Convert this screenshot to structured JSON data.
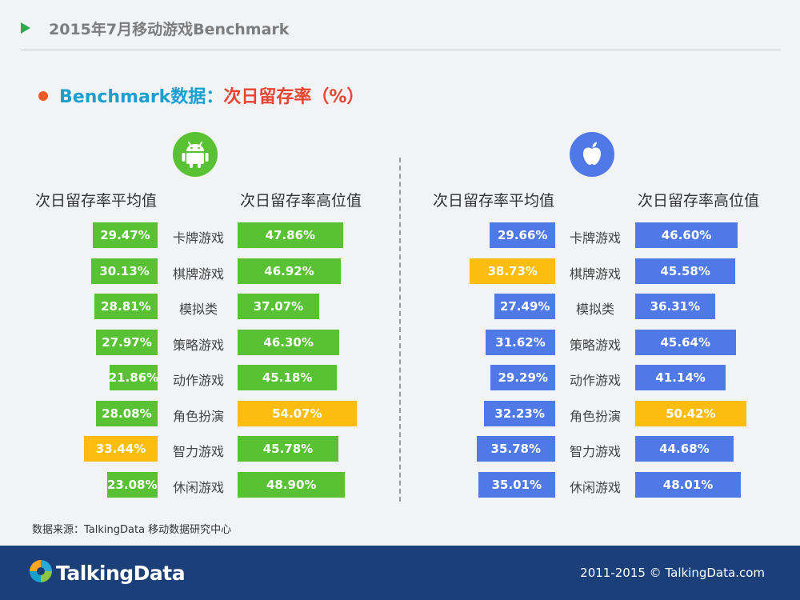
{
  "header": {
    "title": "2015年7月移动游戏Benchmark"
  },
  "subtitle": {
    "prefix": "Benchmark数据：",
    "metric": "次日留存率（%）"
  },
  "columns": {
    "avg": "次日留存率平均值",
    "high": "次日留存率高位值"
  },
  "colors": {
    "android": "#58c234",
    "ios": "#5079e8",
    "highlight": "#fcbd0f"
  },
  "chart_data": [
    {
      "type": "bar",
      "platform": "android-icon",
      "categories": [
        "卡牌游戏",
        "棋牌游戏",
        "模拟类",
        "策略游戏",
        "动作游戏",
        "角色扮演",
        "智力游戏",
        "休闲游戏"
      ],
      "series": [
        {
          "name": "次日留存率平均值",
          "values": [
            29.47,
            30.13,
            28.81,
            27.97,
            21.86,
            28.08,
            33.44,
            23.08
          ],
          "labels": [
            "29.47%",
            "30.13%",
            "28.81%",
            "27.97%",
            "21.86%",
            "28.08%",
            "33.44%",
            "23.08%"
          ]
        },
        {
          "name": "次日留存率高位值",
          "values": [
            47.86,
            46.92,
            37.07,
            46.3,
            45.18,
            54.07,
            45.78,
            48.9
          ],
          "labels": [
            "47.86%",
            "46.92%",
            "37.07%",
            "46.30%",
            "45.18%",
            "54.07%",
            "45.78%",
            "48.90%"
          ]
        }
      ]
    },
    {
      "type": "bar",
      "platform": "apple-icon",
      "categories": [
        "卡牌游戏",
        "棋牌游戏",
        "模拟类",
        "策略游戏",
        "动作游戏",
        "角色扮演",
        "智力游戏",
        "休闲游戏"
      ],
      "series": [
        {
          "name": "次日留存率平均值",
          "values": [
            29.66,
            38.73,
            27.49,
            31.62,
            29.29,
            32.23,
            35.78,
            35.01
          ],
          "labels": [
            "29.66%",
            "38.73%",
            "27.49%",
            "31.62%",
            "29.29%",
            "32.23%",
            "35.78%",
            "35.01%"
          ]
        },
        {
          "name": "次日留存率高位值",
          "values": [
            46.6,
            45.58,
            36.31,
            45.64,
            41.14,
            50.42,
            44.68,
            48.01
          ],
          "labels": [
            "46.60%",
            "45.58%",
            "36.31%",
            "45.64%",
            "41.14%",
            "50.42%",
            "44.68%",
            "48.01%"
          ]
        }
      ]
    }
  ],
  "source": "数据来源：TalkingData 移动数据研究中心",
  "footer": {
    "brand": "TalkingData",
    "copyright": "2011-2015 © TalkingData.com"
  }
}
